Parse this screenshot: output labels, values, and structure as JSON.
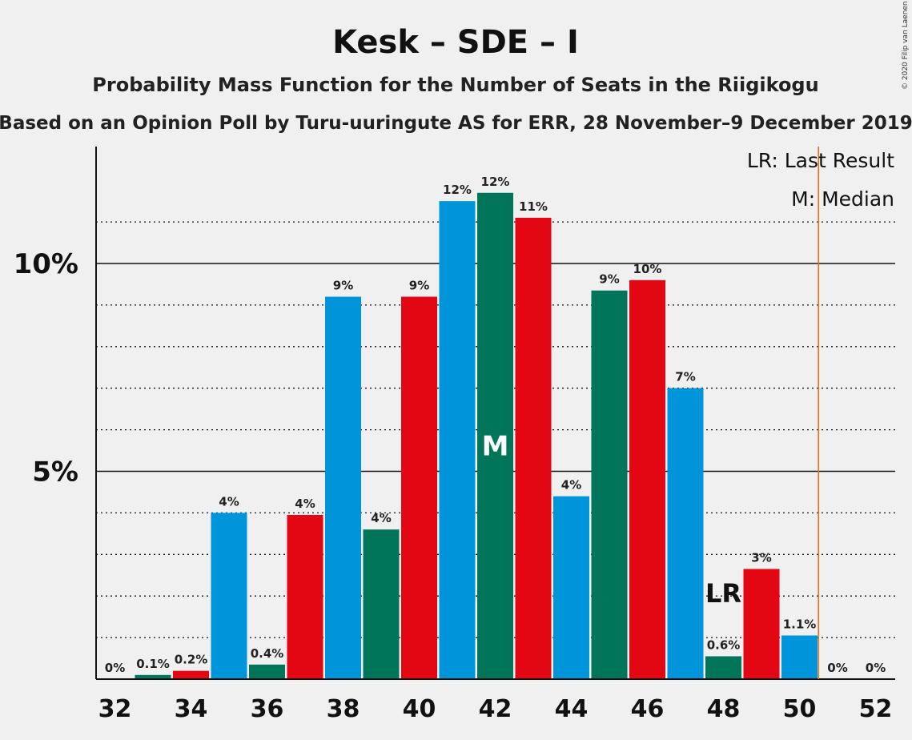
{
  "chart_data": {
    "type": "bar",
    "title": "Kesk – SDE – I",
    "subtitle": "Probability Mass Function for the Number of Seats in the Riigikogu",
    "subtitle2": "Based on an Opinion Poll by Turu-uuringute AS for ERR, 28 November–9 December 2019",
    "copyright": "© 2020 Filip van Laenen",
    "legend": {
      "lr": "LR: Last Result",
      "m": "M: Median",
      "placement": "top-right"
    },
    "y_ticks": [
      {
        "value": 5,
        "label": "5%"
      },
      {
        "value": 10,
        "label": "10%"
      }
    ],
    "ylim": [
      0,
      12.8
    ],
    "x_ticks": [
      32,
      34,
      36,
      38,
      40,
      42,
      44,
      46,
      48,
      50,
      52
    ],
    "median_seat": 42,
    "median_label": "M",
    "last_result_seat": 48,
    "last_result_label": "LR",
    "majority_line": 50.5,
    "colors": {
      "blue": "#0095db",
      "green": "#00755a",
      "red": "#e30613",
      "majority": "#e36e1c"
    },
    "bars": [
      {
        "seat": 32,
        "value": 0,
        "label": "0%",
        "color": "blue"
      },
      {
        "seat": 33,
        "value": 0.1,
        "label": "0.1%",
        "color": "green"
      },
      {
        "seat": 34,
        "value": 0.2,
        "label": "0.2%",
        "color": "red"
      },
      {
        "seat": 35,
        "value": 4.0,
        "label": "4%",
        "color": "blue"
      },
      {
        "seat": 36,
        "value": 0.35,
        "label": "0.4%",
        "color": "green"
      },
      {
        "seat": 37,
        "value": 3.95,
        "label": "4%",
        "color": "red"
      },
      {
        "seat": 38,
        "value": 9.2,
        "label": "9%",
        "color": "blue"
      },
      {
        "seat": 39,
        "value": 3.6,
        "label": "4%",
        "color": "green"
      },
      {
        "seat": 40,
        "value": 9.2,
        "label": "9%",
        "color": "red"
      },
      {
        "seat": 41,
        "value": 11.5,
        "label": "12%",
        "color": "blue"
      },
      {
        "seat": 42,
        "value": 11.7,
        "label": "12%",
        "color": "green"
      },
      {
        "seat": 43,
        "value": 11.1,
        "label": "11%",
        "color": "red"
      },
      {
        "seat": 44,
        "value": 4.4,
        "label": "4%",
        "color": "blue"
      },
      {
        "seat": 45,
        "value": 9.35,
        "label": "9%",
        "color": "green"
      },
      {
        "seat": 46,
        "value": 9.6,
        "label": "10%",
        "color": "red"
      },
      {
        "seat": 47,
        "value": 7.0,
        "label": "7%",
        "color": "blue"
      },
      {
        "seat": 48,
        "value": 0.55,
        "label": "0.6%",
        "color": "green"
      },
      {
        "seat": 49,
        "value": 2.65,
        "label": "3%",
        "color": "red"
      },
      {
        "seat": 50,
        "value": 1.05,
        "label": "1.1%",
        "color": "blue"
      },
      {
        "seat": 51,
        "value": 0,
        "label": "0%",
        "color": "green"
      },
      {
        "seat": 52,
        "value": 0,
        "label": "0%",
        "color": "red"
      }
    ]
  }
}
